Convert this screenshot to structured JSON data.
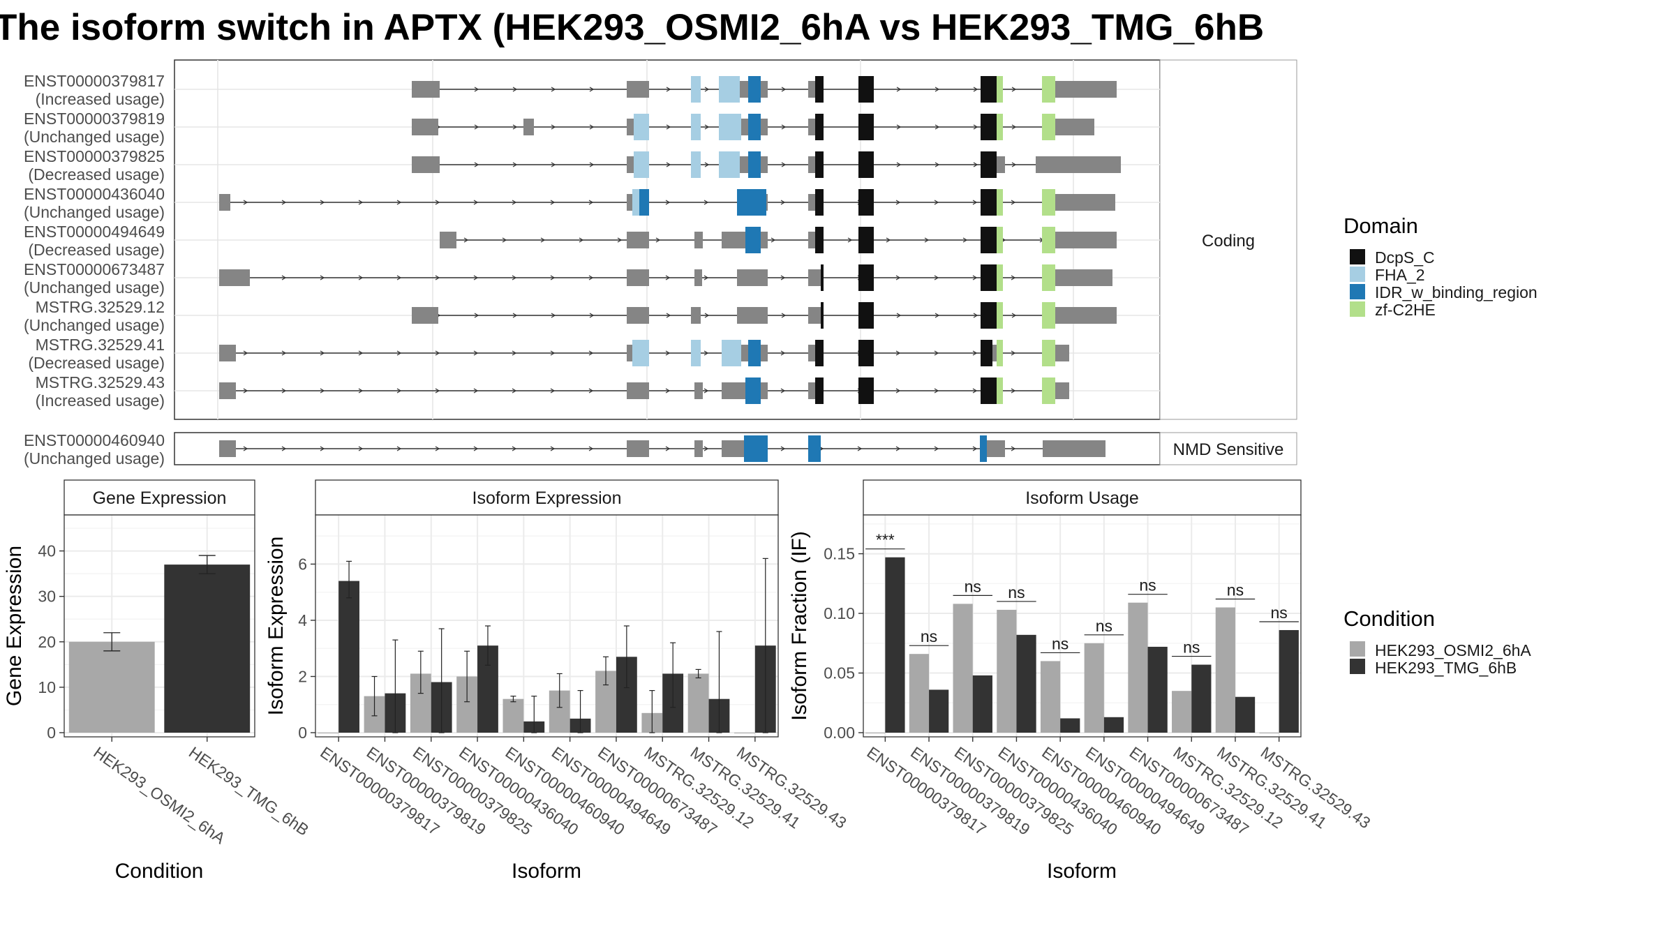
{
  "title": "The isoform switch in APTX (HEK293_OSMI2_6hA vs HEK293_TMG_6hB",
  "colors": {
    "exon": "#858585",
    "condA": "#a8a8a8",
    "condB": "#333333",
    "DcpS_C": "#111111",
    "FHA_2": "#a6cee3",
    "IDR_w_binding_region": "#1f78b4",
    "zf-C2HE": "#b2df8a",
    "grid": "#ebebeb",
    "panel_border": "#333333"
  },
  "structure": {
    "facet_coding": "Coding",
    "facet_nmd": "NMD Sensitive",
    "coding": [
      {
        "id": "ENST00000379817",
        "status": "(Increased usage)"
      },
      {
        "id": "ENST00000379819",
        "status": "(Unchanged usage)"
      },
      {
        "id": "ENST00000379825",
        "status": "(Decreased usage)"
      },
      {
        "id": "ENST00000436040",
        "status": "(Unchanged usage)"
      },
      {
        "id": "ENST00000494649",
        "status": "(Decreased usage)"
      },
      {
        "id": "ENST00000673487",
        "status": "(Unchanged usage)"
      },
      {
        "id": "MSTRG.32529.12",
        "status": "(Unchanged usage)"
      },
      {
        "id": "MSTRG.32529.41",
        "status": "(Decreased usage)"
      },
      {
        "id": "MSTRG.32529.43",
        "status": "(Increased usage)"
      }
    ],
    "nmd": [
      {
        "id": "ENST00000460940",
        "status": "(Unchanged usage)"
      }
    ]
  },
  "legend_domain": {
    "title": "Domain",
    "items": [
      "DcpS_C",
      "FHA_2",
      "IDR_w_binding_region",
      "zf-C2HE"
    ]
  },
  "legend_condition": {
    "title": "Condition",
    "items": [
      "HEK293_OSMI2_6hA",
      "HEK293_TMG_6hB"
    ]
  },
  "chart_data": [
    {
      "type": "bar",
      "title": "Gene Expression",
      "xlabel": "Condition",
      "ylabel": "Gene Expression",
      "ylim": [
        0,
        47
      ],
      "yticks": [
        0,
        10,
        20,
        30,
        40
      ],
      "categories": [
        "HEK293_OSMI2_6hA",
        "HEK293_TMG_6hB"
      ],
      "values": [
        20,
        37
      ],
      "err_low": [
        18,
        35
      ],
      "err_high": [
        22,
        39
      ]
    },
    {
      "type": "bar",
      "title": "Isoform Expression",
      "xlabel": "Isoform",
      "ylabel": "Isoform Expression",
      "ylim": [
        0,
        7.6
      ],
      "yticks": [
        0,
        2,
        4,
        6
      ],
      "categories": [
        "ENST00000379817",
        "ENST00000379819",
        "ENST00000379825",
        "ENST00000436040",
        "ENST00000460940",
        "ENST00000494649",
        "ENST00000673487",
        "MSTRG.32529.12",
        "MSTRG.32529.41",
        "MSTRG.32529.43"
      ],
      "series": [
        {
          "name": "HEK293_OSMI2_6hA",
          "values": [
            0,
            1.3,
            2.1,
            2.0,
            1.2,
            1.5,
            2.2,
            0.7,
            2.1,
            0
          ],
          "err_low": [
            0,
            0.6,
            1.4,
            1.1,
            1.1,
            0.9,
            1.7,
            0.0,
            1.95,
            0
          ],
          "err_high": [
            0,
            2.0,
            2.9,
            2.9,
            1.3,
            2.1,
            2.7,
            1.5,
            2.25,
            0
          ]
        },
        {
          "name": "HEK293_TMG_6hB",
          "values": [
            5.4,
            1.4,
            1.8,
            3.1,
            0.4,
            0.5,
            2.7,
            2.1,
            1.2,
            3.1
          ],
          "err_low": [
            4.8,
            0,
            0,
            2.4,
            0,
            0,
            1.6,
            0.9,
            0,
            0
          ],
          "err_high": [
            6.1,
            3.3,
            3.7,
            3.8,
            1.3,
            1.5,
            3.8,
            3.2,
            3.6,
            6.2
          ]
        }
      ]
    },
    {
      "type": "bar",
      "title": "Isoform Usage",
      "xlabel": "Isoform",
      "ylabel": "Isoform Fraction (IF)",
      "ylim": [
        0,
        0.179
      ],
      "yticks": [
        0.0,
        0.05,
        0.1,
        0.15
      ],
      "ytick_labels": [
        "0.00",
        "0.05",
        "0.10",
        "0.15"
      ],
      "categories": [
        "ENST00000379817",
        "ENST00000379819",
        "ENST00000379825",
        "ENST00000436040",
        "ENST00000460940",
        "ENST00000494649",
        "ENST00000673487",
        "MSTRG.32529.12",
        "MSTRG.32529.41",
        "MSTRG.32529.43"
      ],
      "series": [
        {
          "name": "HEK293_OSMI2_6hA",
          "values": [
            0,
            0.066,
            0.108,
            0.103,
            0.06,
            0.075,
            0.109,
            0.035,
            0.105,
            0
          ]
        },
        {
          "name": "HEK293_TMG_6hB",
          "values": [
            0.147,
            0.036,
            0.048,
            0.082,
            0.012,
            0.013,
            0.072,
            0.057,
            0.03,
            0.086
          ]
        }
      ],
      "significance": [
        "***",
        "ns",
        "ns",
        "ns",
        "ns",
        "ns",
        "ns",
        "ns",
        "ns",
        "ns"
      ]
    }
  ]
}
